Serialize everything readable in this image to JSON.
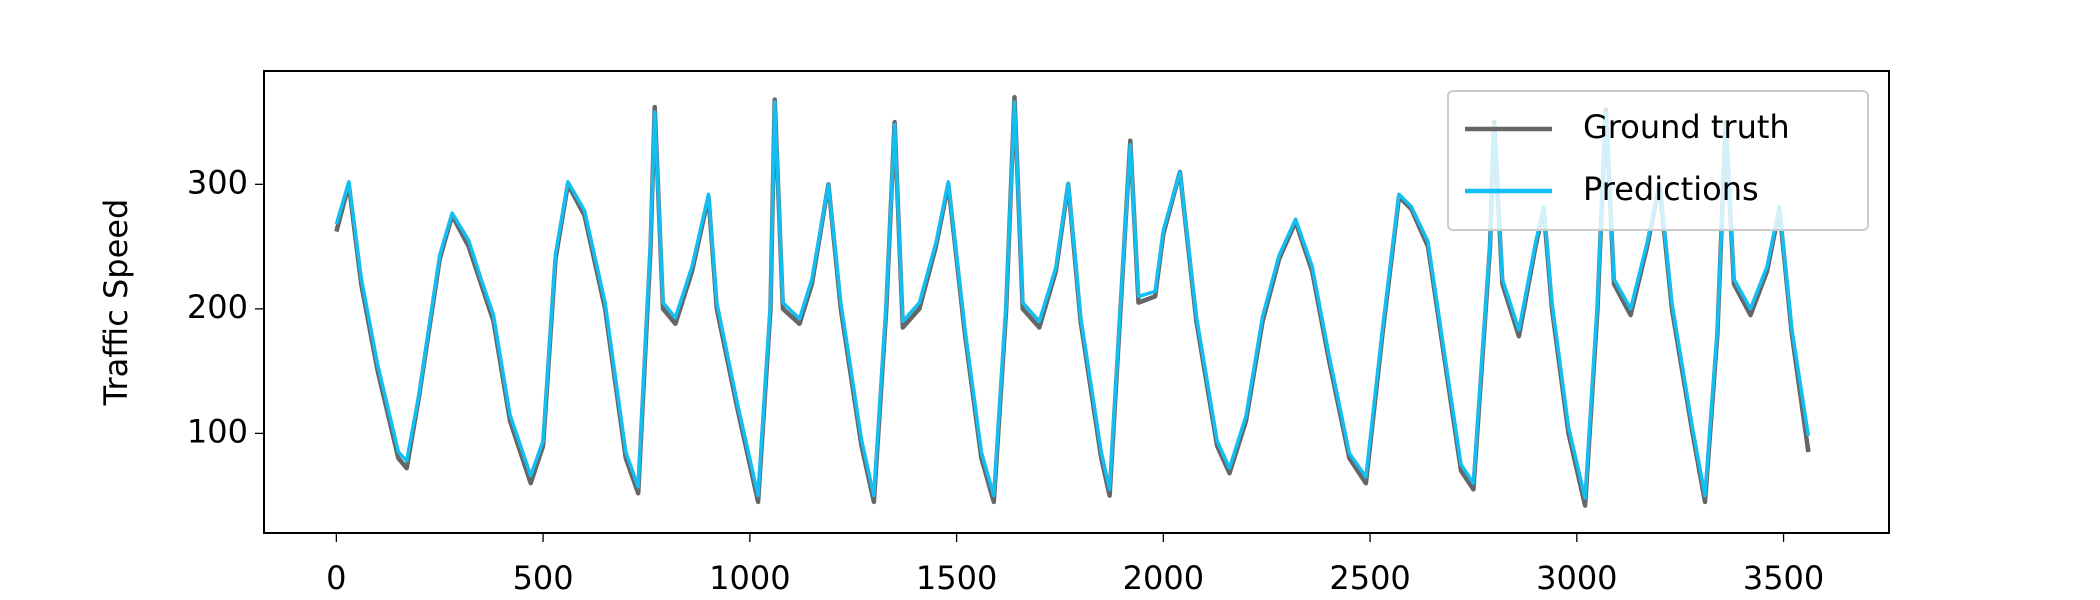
{
  "chart_data": {
    "type": "line",
    "ylabel": "Traffic Speed",
    "legend": "upper right",
    "xlim": [
      -175,
      3755
    ],
    "ylim": [
      20,
      391
    ],
    "xticks": [
      0,
      500,
      1000,
      1500,
      2000,
      2500,
      3000,
      3500
    ],
    "yticks": [
      100,
      200,
      300
    ],
    "x": [
      0,
      30,
      60,
      100,
      150,
      170,
      200,
      250,
      280,
      320,
      350,
      380,
      420,
      470,
      500,
      530,
      560,
      600,
      650,
      700,
      730,
      760,
      770,
      790,
      820,
      860,
      900,
      920,
      970,
      1020,
      1050,
      1060,
      1080,
      1120,
      1150,
      1190,
      1220,
      1270,
      1300,
      1330,
      1350,
      1370,
      1410,
      1450,
      1480,
      1520,
      1560,
      1590,
      1620,
      1640,
      1660,
      1700,
      1740,
      1770,
      1800,
      1850,
      1870,
      1900,
      1920,
      1940,
      1980,
      2000,
      2040,
      2080,
      2130,
      2160,
      2200,
      2240,
      2280,
      2320,
      2360,
      2400,
      2450,
      2490,
      2530,
      2570,
      2600,
      2640,
      2680,
      2720,
      2750,
      2790,
      2800,
      2820,
      2860,
      2900,
      2920,
      2940,
      2980,
      3020,
      3050,
      3070,
      3090,
      3130,
      3170,
      3200,
      3230,
      3280,
      3310,
      3340,
      3360,
      3380,
      3420,
      3460,
      3490,
      3520,
      3560
    ],
    "series": [
      {
        "name": "Ground truth",
        "color": "#666666",
        "values": [
          262,
          300,
          220,
          150,
          80,
          72,
          130,
          240,
          275,
          250,
          220,
          190,
          110,
          60,
          90,
          240,
          300,
          275,
          200,
          80,
          52,
          250,
          362,
          200,
          188,
          230,
          290,
          200,
          120,
          45,
          200,
          368,
          200,
          188,
          220,
          300,
          200,
          90,
          45,
          200,
          350,
          185,
          200,
          250,
          300,
          180,
          80,
          45,
          200,
          370,
          200,
          185,
          230,
          300,
          190,
          80,
          50,
          220,
          335,
          205,
          210,
          260,
          310,
          190,
          90,
          68,
          110,
          190,
          240,
          270,
          230,
          160,
          80,
          60,
          180,
          290,
          280,
          250,
          160,
          70,
          55,
          250,
          350,
          220,
          178,
          250,
          280,
          200,
          100,
          42,
          200,
          360,
          220,
          195,
          250,
          300,
          200,
          100,
          45,
          180,
          350,
          220,
          195,
          230,
          280,
          180,
          85
        ]
      },
      {
        "name": "Predictions",
        "color": "#12bef2",
        "values": [
          268,
          302,
          225,
          155,
          85,
          78,
          132,
          243,
          277,
          255,
          224,
          195,
          115,
          66,
          94,
          244,
          302,
          279,
          205,
          85,
          57,
          255,
          358,
          205,
          193,
          234,
          292,
          205,
          124,
          50,
          205,
          366,
          205,
          192,
          224,
          300,
          205,
          95,
          50,
          205,
          348,
          190,
          205,
          253,
          302,
          184,
          85,
          50,
          205,
          366,
          205,
          190,
          233,
          301,
          194,
          85,
          55,
          223,
          332,
          210,
          214,
          263,
          310,
          194,
          94,
          72,
          114,
          194,
          243,
          272,
          234,
          164,
          84,
          65,
          184,
          292,
          282,
          254,
          164,
          75,
          60,
          253,
          348,
          224,
          183,
          253,
          282,
          205,
          105,
          48,
          205,
          358,
          224,
          200,
          253,
          301,
          205,
          104,
          50,
          184,
          348,
          224,
          200,
          234,
          282,
          184,
          98
        ]
      }
    ]
  }
}
